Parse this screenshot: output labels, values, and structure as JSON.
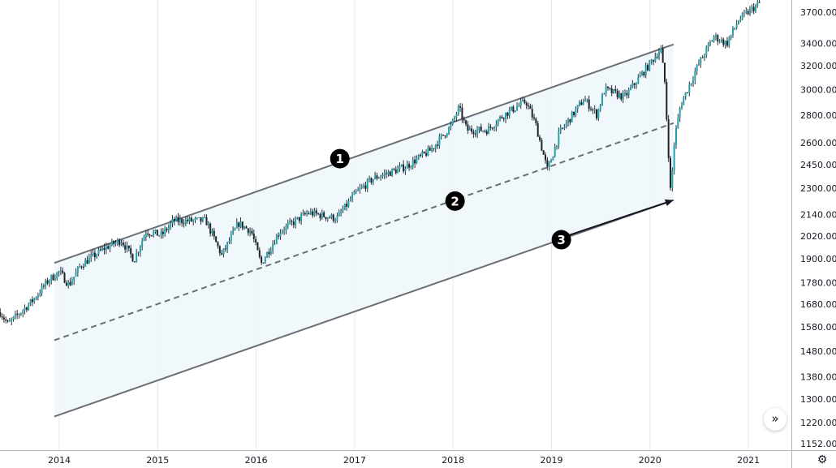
{
  "chart_data": {
    "type": "candlestick",
    "title": "",
    "xlabel": "",
    "ylabel": "",
    "y_scale": "log",
    "ylim": [
      1120,
      3800
    ],
    "xlim": [
      2013.4,
      2021.3
    ],
    "grid": {
      "vertical": true,
      "horizontal": false
    },
    "x_ticks": [
      "2014",
      "2015",
      "2016",
      "2017",
      "2018",
      "2019",
      "2020",
      "2021"
    ],
    "y_ticks": [
      "3700.00",
      "3400.00",
      "3200.00",
      "3000.00",
      "2800.00",
      "2600.00",
      "2450.00",
      "2300.00",
      "2140.00",
      "2020.00",
      "1900.00",
      "1780.00",
      "1680.00",
      "1580.00",
      "1480.00",
      "1380.00",
      "1300.00",
      "1220.00",
      "1152.00"
    ],
    "close_path": [
      [
        2013.4,
        1644
      ],
      [
        2013.48,
        1591
      ],
      [
        2013.73,
        1697
      ],
      [
        2013.89,
        1792
      ],
      [
        2014.0,
        1834
      ],
      [
        2014.1,
        1770
      ],
      [
        2014.22,
        1868
      ],
      [
        2014.47,
        1958
      ],
      [
        2014.63,
        1998
      ],
      [
        2014.76,
        1894
      ],
      [
        2014.88,
        2046
      ],
      [
        2015.04,
        2024
      ],
      [
        2015.16,
        2105
      ],
      [
        2015.49,
        2105
      ],
      [
        2015.65,
        1917
      ],
      [
        2015.82,
        2091
      ],
      [
        2015.95,
        2046
      ],
      [
        2016.05,
        1874
      ],
      [
        2016.24,
        2046
      ],
      [
        2016.53,
        2152
      ],
      [
        2016.82,
        2118
      ],
      [
        2017.0,
        2261
      ],
      [
        2017.19,
        2361
      ],
      [
        2017.52,
        2437
      ],
      [
        2017.77,
        2547
      ],
      [
        2017.98,
        2720
      ],
      [
        2018.06,
        2857
      ],
      [
        2018.14,
        2690
      ],
      [
        2018.35,
        2690
      ],
      [
        2018.51,
        2800
      ],
      [
        2018.74,
        2908
      ],
      [
        2018.84,
        2730
      ],
      [
        2018.96,
        2411
      ],
      [
        2019.08,
        2668
      ],
      [
        2019.33,
        2926
      ],
      [
        2019.46,
        2803
      ],
      [
        2019.54,
        3003
      ],
      [
        2019.74,
        2940
      ],
      [
        2019.99,
        3209
      ],
      [
        2020.11,
        3354
      ],
      [
        2020.15,
        3063
      ],
      [
        2020.21,
        2261
      ],
      [
        2020.25,
        2630
      ],
      [
        2020.31,
        2876
      ],
      [
        2020.49,
        3209
      ],
      [
        2020.65,
        3465
      ],
      [
        2020.78,
        3397
      ],
      [
        2020.9,
        3622
      ],
      [
        2021.12,
        3800
      ]
    ],
    "colors": {
      "up": "#22a2aa",
      "down": "#1f2329",
      "wick": "#2a2e39",
      "channel": "#6b6e75",
      "channel_fill": "#eef6fb",
      "grid": "#e6e8ec"
    },
    "annotations": {
      "parallel_channel": {
        "upper": [
          [
            2013.95,
            1878
          ],
          [
            2020.24,
            3392
          ]
        ],
        "middle": [
          [
            2013.95,
            1524
          ],
          [
            2020.24,
            2741
          ]
        ],
        "lower": [
          [
            2013.95,
            1240
          ],
          [
            2020.24,
            2226
          ]
        ]
      },
      "arrow": [
        [
          2019.04,
          2000
        ],
        [
          2020.24,
          2226
        ]
      ],
      "markers": [
        {
          "label": "1",
          "date": 2016.85,
          "price": 2490
        },
        {
          "label": "2",
          "date": 2018.02,
          "price": 2220
        },
        {
          "label": "3",
          "date": 2019.1,
          "price": 2000
        }
      ]
    }
  },
  "ui": {
    "scroll_icon": "double-chevron-right-icon",
    "scroll_glyph": "»",
    "settings_icon": "gear-icon",
    "settings_glyph": "⚙"
  }
}
